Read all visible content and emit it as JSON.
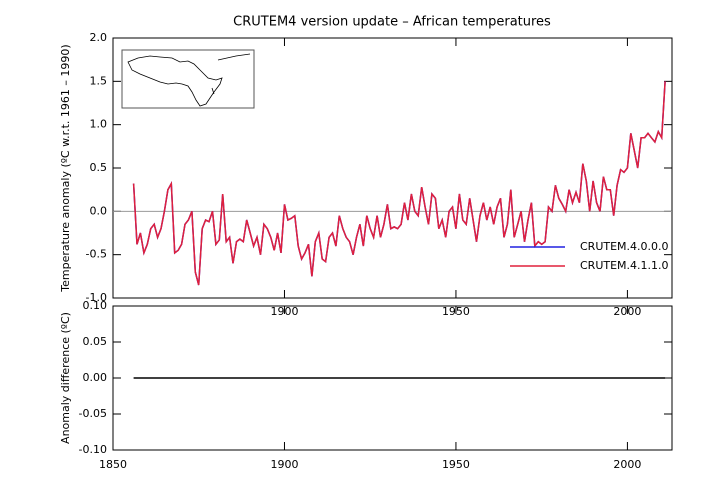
{
  "chart_data": [
    {
      "type": "line",
      "title": "CRUTEM4 version update – African temperatures",
      "y_label": "Temperature anomaly (ºC w.r.t. 1961 – 1990)",
      "x": [
        1856,
        1857,
        1858,
        1859,
        1860,
        1861,
        1862,
        1863,
        1864,
        1865,
        1866,
        1867,
        1868,
        1869,
        1870,
        1871,
        1872,
        1873,
        1874,
        1875,
        1876,
        1877,
        1878,
        1879,
        1880,
        1881,
        1882,
        1883,
        1884,
        1885,
        1886,
        1887,
        1888,
        1889,
        1890,
        1891,
        1892,
        1893,
        1894,
        1895,
        1896,
        1897,
        1898,
        1899,
        1900,
        1901,
        1902,
        1903,
        1904,
        1905,
        1906,
        1907,
        1908,
        1909,
        1910,
        1911,
        1912,
        1913,
        1914,
        1915,
        1916,
        1917,
        1918,
        1919,
        1920,
        1921,
        1922,
        1923,
        1924,
        1925,
        1926,
        1927,
        1928,
        1929,
        1930,
        1931,
        1932,
        1933,
        1934,
        1935,
        1936,
        1937,
        1938,
        1939,
        1940,
        1941,
        1942,
        1943,
        1944,
        1945,
        1946,
        1947,
        1948,
        1949,
        1950,
        1951,
        1952,
        1953,
        1954,
        1955,
        1956,
        1957,
        1958,
        1959,
        1960,
        1961,
        1962,
        1963,
        1964,
        1965,
        1966,
        1967,
        1968,
        1969,
        1970,
        1971,
        1972,
        1973,
        1974,
        1975,
        1976,
        1977,
        1978,
        1979,
        1980,
        1981,
        1982,
        1983,
        1984,
        1985,
        1986,
        1987,
        1988,
        1989,
        1990,
        1991,
        1992,
        1993,
        1994,
        1995,
        1996,
        1997,
        1998,
        1999,
        2000,
        2001,
        2002,
        2003,
        2004,
        2005,
        2006,
        2007,
        2008,
        2009,
        2010,
        2011
      ],
      "series": [
        {
          "name": "CRUTEM.4.0.0.0",
          "color": "#2020e0",
          "values": [
            0.32,
            -0.38,
            -0.25,
            -0.48,
            -0.38,
            -0.2,
            -0.15,
            -0.3,
            -0.2,
            0.0,
            0.25,
            0.32,
            -0.48,
            -0.45,
            -0.38,
            -0.15,
            -0.1,
            0.0,
            -0.7,
            -0.85,
            -0.2,
            -0.1,
            -0.12,
            0.0,
            -0.38,
            -0.33,
            0.2,
            -0.35,
            -0.3,
            -0.6,
            -0.35,
            -0.32,
            -0.35,
            -0.1,
            -0.25,
            -0.4,
            -0.3,
            -0.5,
            -0.15,
            -0.2,
            -0.3,
            -0.45,
            -0.25,
            -0.48,
            0.08,
            -0.1,
            -0.08,
            -0.05,
            -0.4,
            -0.55,
            -0.48,
            -0.38,
            -0.75,
            -0.35,
            -0.25,
            -0.55,
            -0.58,
            -0.3,
            -0.25,
            -0.4,
            -0.05,
            -0.2,
            -0.3,
            -0.35,
            -0.5,
            -0.3,
            -0.15,
            -0.4,
            -0.05,
            -0.2,
            -0.3,
            -0.05,
            -0.3,
            -0.15,
            0.08,
            -0.2,
            -0.18,
            -0.2,
            -0.15,
            0.1,
            -0.1,
            0.2,
            0.0,
            -0.05,
            0.28,
            0.05,
            -0.15,
            0.2,
            0.15,
            -0.2,
            -0.1,
            -0.3,
            0.0,
            0.05,
            -0.2,
            0.2,
            -0.1,
            -0.15,
            0.15,
            -0.1,
            -0.35,
            -0.05,
            0.1,
            -0.1,
            0.05,
            -0.15,
            0.05,
            0.15,
            -0.3,
            -0.15,
            0.25,
            -0.3,
            -0.15,
            0.0,
            -0.35,
            -0.1,
            0.1,
            -0.4,
            -0.35,
            -0.38,
            -0.35,
            0.05,
            0.0,
            0.3,
            0.15,
            0.08,
            0.0,
            0.25,
            0.1,
            0.22,
            0.1,
            0.55,
            0.35,
            0.0,
            0.35,
            0.1,
            0.0,
            0.4,
            0.25,
            0.25,
            -0.05,
            0.3,
            0.48,
            0.45,
            0.5,
            0.9,
            0.7,
            0.5,
            0.85,
            0.85,
            0.9,
            0.85,
            0.8,
            0.92,
            0.85,
            1.5
          ]
        },
        {
          "name": "CRUTEM.4.1.1.0",
          "color": "#e0203c",
          "values": [
            0.32,
            -0.38,
            -0.25,
            -0.48,
            -0.38,
            -0.2,
            -0.15,
            -0.3,
            -0.2,
            0.0,
            0.25,
            0.32,
            -0.48,
            -0.45,
            -0.38,
            -0.15,
            -0.1,
            0.0,
            -0.7,
            -0.85,
            -0.2,
            -0.1,
            -0.12,
            0.0,
            -0.38,
            -0.33,
            0.2,
            -0.35,
            -0.3,
            -0.6,
            -0.35,
            -0.32,
            -0.35,
            -0.1,
            -0.25,
            -0.4,
            -0.3,
            -0.5,
            -0.15,
            -0.2,
            -0.3,
            -0.45,
            -0.25,
            -0.48,
            0.08,
            -0.1,
            -0.08,
            -0.05,
            -0.4,
            -0.55,
            -0.48,
            -0.38,
            -0.75,
            -0.35,
            -0.25,
            -0.55,
            -0.58,
            -0.3,
            -0.25,
            -0.4,
            -0.05,
            -0.2,
            -0.3,
            -0.35,
            -0.5,
            -0.3,
            -0.15,
            -0.4,
            -0.05,
            -0.2,
            -0.3,
            -0.05,
            -0.3,
            -0.15,
            0.08,
            -0.2,
            -0.18,
            -0.2,
            -0.15,
            0.1,
            -0.1,
            0.2,
            0.0,
            -0.05,
            0.28,
            0.05,
            -0.15,
            0.2,
            0.15,
            -0.2,
            -0.1,
            -0.3,
            0.0,
            0.05,
            -0.2,
            0.2,
            -0.1,
            -0.15,
            0.15,
            -0.1,
            -0.35,
            -0.05,
            0.1,
            -0.1,
            0.05,
            -0.15,
            0.05,
            0.15,
            -0.3,
            -0.15,
            0.25,
            -0.3,
            -0.15,
            0.0,
            -0.35,
            -0.1,
            0.1,
            -0.4,
            -0.35,
            -0.38,
            -0.35,
            0.05,
            0.0,
            0.3,
            0.15,
            0.08,
            0.0,
            0.25,
            0.1,
            0.22,
            0.1,
            0.55,
            0.35,
            0.0,
            0.35,
            0.1,
            0.0,
            0.4,
            0.25,
            0.25,
            -0.05,
            0.3,
            0.48,
            0.45,
            0.5,
            0.9,
            0.7,
            0.5,
            0.85,
            0.85,
            0.9,
            0.85,
            0.8,
            0.92,
            0.85,
            1.5
          ]
        }
      ],
      "xlim": [
        1850,
        2013
      ],
      "xticks": [
        1900,
        1950,
        2000
      ],
      "ylim": [
        -1,
        2
      ],
      "yticks": [
        {
          "value": -1,
          "label": "-1.0"
        },
        {
          "value": -0.5,
          "label": "-0.5"
        },
        {
          "value": 0,
          "label": "0.0"
        },
        {
          "value": 0.5,
          "label": "0.5"
        },
        {
          "value": 1,
          "label": "1.0"
        },
        {
          "value": 1.5,
          "label": "1.5"
        },
        {
          "value": 2,
          "label": "2.0"
        }
      ],
      "zero_line": true,
      "legend": "lower right"
    },
    {
      "type": "line",
      "y_label": "Anomaly difference (ºC)",
      "x": [
        1856,
        1857,
        1858,
        1859,
        1860,
        1861,
        1862,
        1863,
        1864,
        1865,
        1866,
        1867,
        1868,
        1869,
        1870,
        1871,
        1872,
        1873,
        1874,
        1875,
        1876,
        1877,
        1878,
        1879,
        1880,
        1881,
        1882,
        1883,
        1884,
        1885,
        1886,
        1887,
        1888,
        1889,
        1890,
        1891,
        1892,
        1893,
        1894,
        1895,
        1896,
        1897,
        1898,
        1899,
        1900,
        1901,
        1902,
        1903,
        1904,
        1905,
        1906,
        1907,
        1908,
        1909,
        1910,
        1911,
        1912,
        1913,
        1914,
        1915,
        1916,
        1917,
        1918,
        1919,
        1920,
        1921,
        1922,
        1923,
        1924,
        1925,
        1926,
        1927,
        1928,
        1929,
        1930,
        1931,
        1932,
        1933,
        1934,
        1935,
        1936,
        1937,
        1938,
        1939,
        1940,
        1941,
        1942,
        1943,
        1944,
        1945,
        1946,
        1947,
        1948,
        1949,
        1950,
        1951,
        1952,
        1953,
        1954,
        1955,
        1956,
        1957,
        1958,
        1959,
        1960,
        1961,
        1962,
        1963,
        1964,
        1965,
        1966,
        1967,
        1968,
        1969,
        1970,
        1971,
        1972,
        1973,
        1974,
        1975,
        1976,
        1977,
        1978,
        1979,
        1980,
        1981,
        1982,
        1983,
        1984,
        1985,
        1986,
        1987,
        1988,
        1989,
        1990,
        1991,
        1992,
        1993,
        1994,
        1995,
        1996,
        1997,
        1998,
        1999,
        2000,
        2001,
        2002,
        2003,
        2004,
        2005,
        2006,
        2007,
        2008,
        2009,
        2010,
        2011
      ],
      "color": "#000000",
      "values": [
        0,
        0,
        0,
        0,
        0,
        0,
        0,
        0,
        0,
        0,
        0,
        0,
        0,
        0,
        0,
        0,
        0,
        0,
        0,
        0,
        0,
        0,
        0,
        0,
        0,
        0,
        0,
        0,
        0,
        0,
        0,
        0,
        0,
        0,
        0,
        0,
        0,
        0,
        0,
        0,
        0,
        0,
        0,
        0,
        0,
        0,
        0,
        0,
        0,
        0,
        0,
        0,
        0,
        0,
        0,
        0,
        0,
        0,
        0,
        0,
        0,
        0,
        0,
        0,
        0,
        0,
        0,
        0,
        0,
        0,
        0,
        0,
        0,
        0,
        0,
        0,
        0,
        0,
        0,
        0,
        0,
        0,
        0,
        0,
        0,
        0,
        0,
        0,
        0,
        0,
        0,
        0,
        0,
        0,
        0,
        0,
        0,
        0,
        0,
        0,
        0,
        0,
        0,
        0,
        0,
        0,
        0,
        0,
        0,
        0,
        0,
        0,
        0,
        0,
        0,
        0,
        0,
        0,
        0,
        0,
        0,
        0,
        0,
        0,
        0,
        0,
        0,
        0,
        0,
        0,
        0,
        0,
        0,
        0,
        0,
        0,
        0,
        0,
        0,
        0,
        0,
        0,
        0,
        0,
        0,
        0,
        0,
        0,
        0,
        0,
        0,
        0,
        0,
        0,
        0,
        0
      ],
      "xlim": [
        1850,
        2013
      ],
      "xticks": [
        1850,
        1900,
        1950,
        2000
      ],
      "ylim": [
        -0.1,
        0.1
      ],
      "yticks": [
        {
          "value": -0.1,
          "label": "-0.10"
        },
        {
          "value": -0.05,
          "label": "-0.05"
        },
        {
          "value": 0,
          "label": "0.00"
        },
        {
          "value": 0.05,
          "label": "0.05"
        },
        {
          "value": 0.1,
          "label": "0.10"
        }
      ]
    }
  ]
}
